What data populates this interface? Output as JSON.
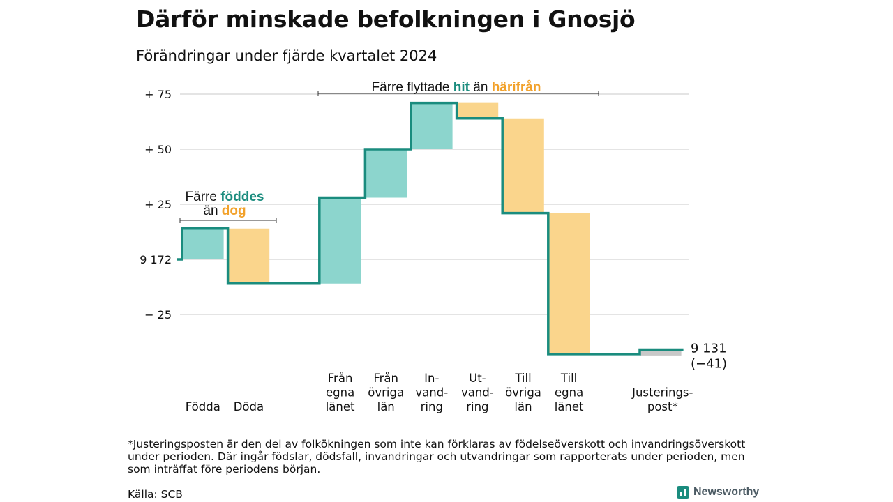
{
  "header": {
    "title": "Därför minskade befolkningen i Gnosjö",
    "subtitle": "Förändringar under fjärde kvartalet 2024"
  },
  "colors": {
    "teal_fill": "#8cd5cd",
    "teal_line": "#1a8c7e",
    "orange_fill": "#fad58c",
    "orange_text": "#f2a12a",
    "grid": "#dcdcdc",
    "adjust_fill": "#c8c8c8"
  },
  "chart_data": {
    "type": "waterfall",
    "start_value": 9172,
    "end_value": 9131,
    "end_label": "9 131",
    "end_change_label": "(−41)",
    "baseline_label": "9 172",
    "y_ticks": [
      {
        "value": 75,
        "label": "+ 75"
      },
      {
        "value": 50,
        "label": "+ 50"
      },
      {
        "value": 25,
        "label": "+ 25"
      },
      {
        "value": 0,
        "label": "9 172"
      },
      {
        "value": -25,
        "label": "− 25"
      }
    ],
    "ylim": [
      -43,
      76
    ],
    "steps": [
      {
        "category": "Födda",
        "label_lines": [
          "Födda"
        ],
        "change": 14,
        "kind": "in"
      },
      {
        "category": "Döda",
        "label_lines": [
          "Döda"
        ],
        "change": -25,
        "kind": "out"
      },
      {
        "category": "",
        "label_lines": [],
        "change": 0,
        "kind": "gap"
      },
      {
        "category": "Från egna länet",
        "label_lines": [
          "Från",
          "egna",
          "länet"
        ],
        "change": 39,
        "kind": "in"
      },
      {
        "category": "Från övriga län",
        "label_lines": [
          "Från",
          "övriga",
          "län"
        ],
        "change": 22,
        "kind": "in"
      },
      {
        "category": "Invandring",
        "label_lines": [
          "In-",
          "vand-",
          "ring"
        ],
        "change": 21,
        "kind": "in"
      },
      {
        "category": "Utvandring",
        "label_lines": [
          "Ut-",
          "vand-",
          "ring"
        ],
        "change": -7,
        "kind": "out"
      },
      {
        "category": "Till övriga län",
        "label_lines": [
          "Till",
          "övriga",
          "län"
        ],
        "change": -43,
        "kind": "out"
      },
      {
        "category": "Till egna länet",
        "label_lines": [
          "Till",
          "egna",
          "länet"
        ],
        "change": -64,
        "kind": "out"
      },
      {
        "category": "",
        "label_lines": [],
        "change": 0,
        "kind": "gap"
      },
      {
        "category": "Justeringspost*",
        "label_lines": [
          "Justerings-",
          "post*"
        ],
        "change": 2,
        "kind": "adjust"
      }
    ],
    "annotations": {
      "births": {
        "line1": "Färre ",
        "line1_hl": "föddes",
        "line2": "än ",
        "line2_hl": "dog"
      },
      "migration": {
        "text": "Färre flyttade ",
        "hl1": "hit",
        "mid": " än ",
        "hl2": "härifrån"
      }
    }
  },
  "footer": {
    "footnote": "*Justeringsposten är den del av folkökningen som inte kan förklaras av födelseöverskott och invandringsöverskott under perioden. Där ingår födslar, dödsfall, invandringar och utvandringar som rapporterats under perioden, men som inträffat före periodens början.",
    "source": "Källa: SCB",
    "brand": "Newsworthy"
  }
}
